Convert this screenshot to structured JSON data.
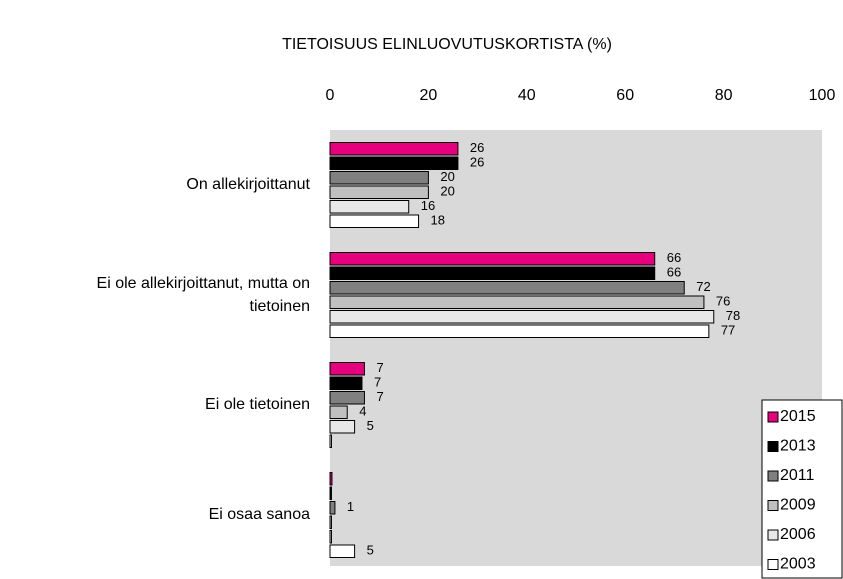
{
  "chart_data": {
    "type": "bar",
    "orientation": "horizontal",
    "title": "TIETOISUUS ELINLUOVUTUSKORTISTA (%)",
    "categories": [
      "On allekirjoittanut",
      "Ei ole allekirjoittanut, mutta on tietoinen",
      "Ei ole tietoinen",
      "Ei osaa sanoa"
    ],
    "series": [
      {
        "name": "2015",
        "color": "#e6007e",
        "values": [
          26,
          66,
          7,
          0.4
        ],
        "value_labels": [
          "26",
          "66",
          "7",
          null
        ]
      },
      {
        "name": "2013",
        "color": "#000000",
        "values": [
          26,
          66,
          6.5,
          0.3
        ],
        "value_labels": [
          "26",
          "66",
          "7",
          null
        ]
      },
      {
        "name": "2011",
        "color": "#808080",
        "values": [
          20,
          72,
          7,
          1
        ],
        "value_labels": [
          "20",
          "72",
          "7",
          "1"
        ]
      },
      {
        "name": "2009",
        "color": "#c0c0c0",
        "values": [
          20,
          76,
          3.5,
          0.3
        ],
        "value_labels": [
          "20",
          "76",
          "4",
          null
        ]
      },
      {
        "name": "2006",
        "color": "#e8e8e8",
        "values": [
          16,
          78,
          5,
          0.3
        ],
        "value_labels": [
          "16",
          "78",
          "5",
          null
        ]
      },
      {
        "name": "2003",
        "color": "#ffffff",
        "values": [
          18,
          77,
          0.3,
          5
        ],
        "value_labels": [
          "18",
          "77",
          null,
          "5"
        ]
      }
    ],
    "xlim": [
      0,
      100
    ],
    "xticks": [
      0,
      20,
      40,
      60,
      80,
      100
    ],
    "legend": "lower right"
  }
}
